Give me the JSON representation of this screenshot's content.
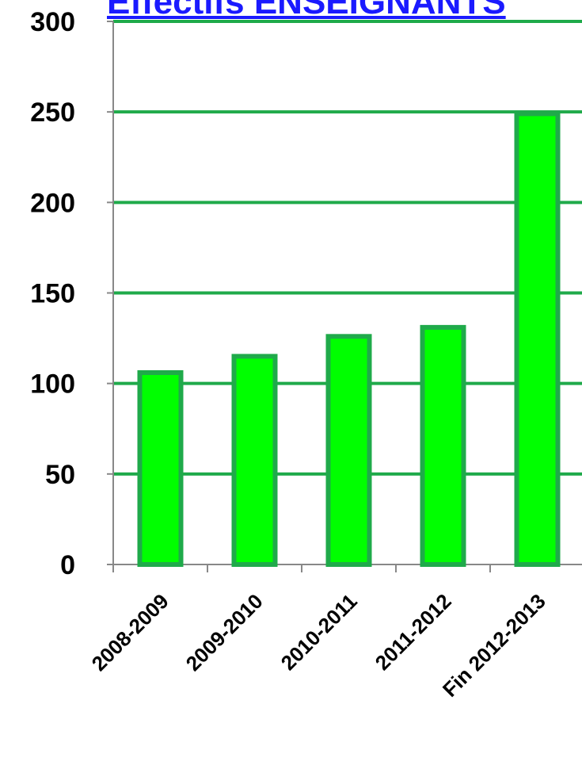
{
  "chart_data": {
    "type": "bar",
    "title": "Effectifs ENSEIGNANTS",
    "categories": [
      "2008-2009",
      "2009-2010",
      "2010-2011",
      "2011-2012",
      "Fin 2012-2013"
    ],
    "values": [
      106,
      115,
      126,
      131,
      249
    ],
    "ylim": [
      0,
      300
    ],
    "yticks": [
      0,
      50,
      100,
      150,
      200,
      250,
      300
    ],
    "xlabel": "",
    "ylabel": "",
    "grid": true,
    "colors": {
      "bar_fill": "#00ff00",
      "bar_stroke": "#1faa4a",
      "grid": "#1faa4a",
      "title": "#1a1aff",
      "axis": "#888888"
    }
  }
}
